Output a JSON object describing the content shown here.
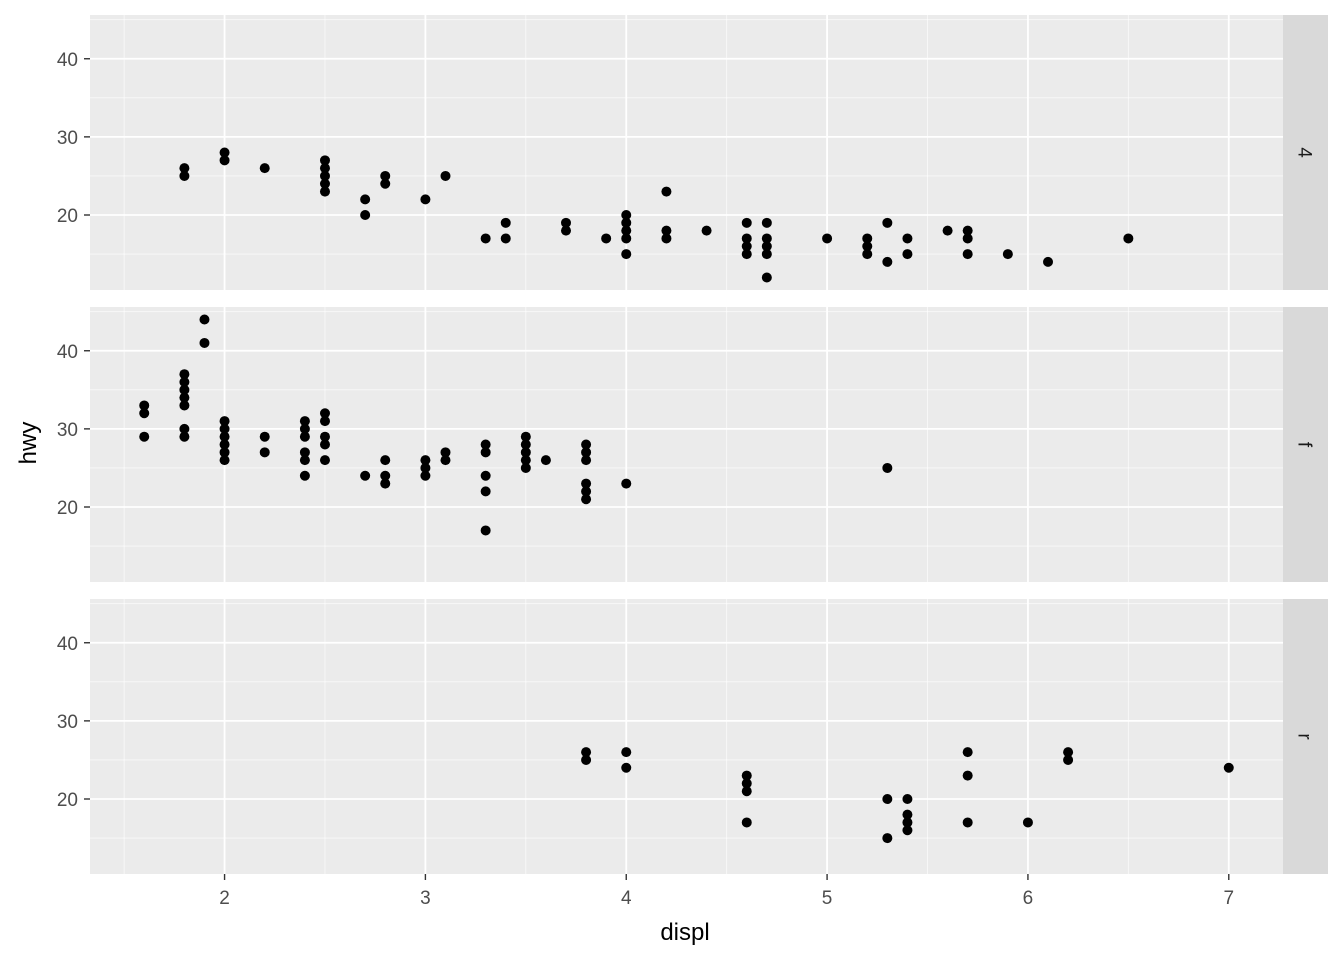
{
  "chart_data": {
    "type": "scatter",
    "xlabel": "displ",
    "ylabel": "hwy",
    "xlim": [
      1.33,
      7.27
    ],
    "ylim": [
      10.4,
      45.6
    ],
    "x_ticks": [
      2,
      3,
      4,
      5,
      6,
      7
    ],
    "y_ticks": [
      20,
      30,
      40
    ],
    "grid": true,
    "facet_by": "drv",
    "panels": [
      {
        "label": "4",
        "points": [
          [
            1.8,
            26
          ],
          [
            1.8,
            25
          ],
          [
            2.0,
            28
          ],
          [
            2.0,
            27
          ],
          [
            2.2,
            26
          ],
          [
            2.5,
            27
          ],
          [
            2.5,
            26
          ],
          [
            2.5,
            25
          ],
          [
            2.5,
            24
          ],
          [
            2.5,
            23
          ],
          [
            2.7,
            22
          ],
          [
            2.7,
            20
          ],
          [
            2.8,
            25
          ],
          [
            2.8,
            24
          ],
          [
            3.0,
            22
          ],
          [
            3.1,
            25
          ],
          [
            3.3,
            17
          ],
          [
            3.4,
            19
          ],
          [
            3.4,
            17
          ],
          [
            3.7,
            19
          ],
          [
            3.7,
            18
          ],
          [
            3.9,
            17
          ],
          [
            4.0,
            20
          ],
          [
            4.0,
            19
          ],
          [
            4.0,
            18
          ],
          [
            4.0,
            17
          ],
          [
            4.0,
            15
          ],
          [
            4.2,
            23
          ],
          [
            4.2,
            18
          ],
          [
            4.2,
            17
          ],
          [
            4.4,
            18
          ],
          [
            4.6,
            19
          ],
          [
            4.6,
            17
          ],
          [
            4.6,
            16
          ],
          [
            4.6,
            15
          ],
          [
            4.7,
            19
          ],
          [
            4.7,
            17
          ],
          [
            4.7,
            16
          ],
          [
            4.7,
            15
          ],
          [
            4.7,
            12
          ],
          [
            5.0,
            17
          ],
          [
            5.2,
            17
          ],
          [
            5.2,
            16
          ],
          [
            5.2,
            15
          ],
          [
            5.3,
            19
          ],
          [
            5.3,
            14
          ],
          [
            5.4,
            17
          ],
          [
            5.4,
            15
          ],
          [
            5.6,
            18
          ],
          [
            5.7,
            18
          ],
          [
            5.7,
            17
          ],
          [
            5.7,
            15
          ],
          [
            5.9,
            15
          ],
          [
            6.1,
            14
          ],
          [
            6.5,
            17
          ]
        ]
      },
      {
        "label": "f",
        "points": [
          [
            1.6,
            33
          ],
          [
            1.6,
            32
          ],
          [
            1.6,
            29
          ],
          [
            1.8,
            37
          ],
          [
            1.8,
            36
          ],
          [
            1.8,
            35
          ],
          [
            1.8,
            34
          ],
          [
            1.8,
            33
          ],
          [
            1.8,
            30
          ],
          [
            1.8,
            29
          ],
          [
            1.9,
            44
          ],
          [
            1.9,
            41
          ],
          [
            2.0,
            31
          ],
          [
            2.0,
            30
          ],
          [
            2.0,
            29
          ],
          [
            2.0,
            28
          ],
          [
            2.0,
            27
          ],
          [
            2.0,
            26
          ],
          [
            2.2,
            29
          ],
          [
            2.2,
            27
          ],
          [
            2.4,
            31
          ],
          [
            2.4,
            30
          ],
          [
            2.4,
            29
          ],
          [
            2.4,
            27
          ],
          [
            2.4,
            26
          ],
          [
            2.4,
            24
          ],
          [
            2.5,
            32
          ],
          [
            2.5,
            31
          ],
          [
            2.5,
            29
          ],
          [
            2.5,
            28
          ],
          [
            2.5,
            26
          ],
          [
            2.7,
            24
          ],
          [
            2.8,
            26
          ],
          [
            2.8,
            24
          ],
          [
            2.8,
            23
          ],
          [
            3.0,
            26
          ],
          [
            3.0,
            25
          ],
          [
            3.0,
            24
          ],
          [
            3.1,
            27
          ],
          [
            3.1,
            26
          ],
          [
            3.3,
            28
          ],
          [
            3.3,
            27
          ],
          [
            3.3,
            24
          ],
          [
            3.3,
            22
          ],
          [
            3.3,
            17
          ],
          [
            3.5,
            29
          ],
          [
            3.5,
            28
          ],
          [
            3.5,
            27
          ],
          [
            3.5,
            26
          ],
          [
            3.5,
            25
          ],
          [
            3.6,
            26
          ],
          [
            3.8,
            28
          ],
          [
            3.8,
            27
          ],
          [
            3.8,
            26
          ],
          [
            3.8,
            23
          ],
          [
            3.8,
            22
          ],
          [
            3.8,
            21
          ],
          [
            4.0,
            23
          ],
          [
            5.3,
            25
          ]
        ]
      },
      {
        "label": "r",
        "points": [
          [
            3.8,
            26
          ],
          [
            3.8,
            25
          ],
          [
            4.0,
            26
          ],
          [
            4.0,
            24
          ],
          [
            4.6,
            23
          ],
          [
            4.6,
            22
          ],
          [
            4.6,
            21
          ],
          [
            4.6,
            17
          ],
          [
            5.3,
            20
          ],
          [
            5.3,
            15
          ],
          [
            5.4,
            20
          ],
          [
            5.4,
            18
          ],
          [
            5.4,
            17
          ],
          [
            5.4,
            16
          ],
          [
            5.7,
            26
          ],
          [
            5.7,
            23
          ],
          [
            5.7,
            17
          ],
          [
            6.0,
            17
          ],
          [
            6.2,
            26
          ],
          [
            6.2,
            25
          ],
          [
            7.0,
            24
          ]
        ]
      }
    ]
  },
  "colors": {
    "panel_bg": "#ebebeb",
    "grid_major": "#ffffff",
    "strip_bg": "#d9d9d9",
    "point": "#000000"
  }
}
